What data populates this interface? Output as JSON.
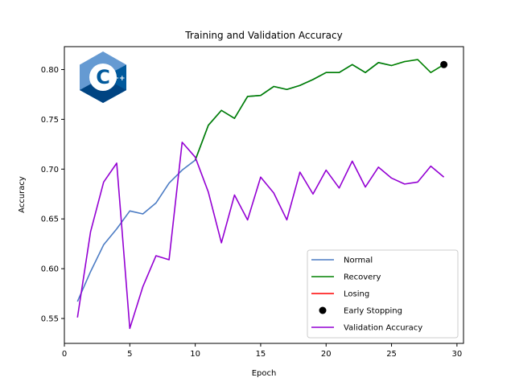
{
  "chart_data": {
    "type": "line",
    "title": "Training and Validation Accuracy",
    "xlabel": "Epoch",
    "ylabel": "Accuracy",
    "xlim": [
      0,
      30.5
    ],
    "ylim": [
      0.525,
      0.823
    ],
    "xticks": [
      0,
      5,
      10,
      15,
      20,
      25,
      30
    ],
    "yticks": [
      0.55,
      0.6,
      0.65,
      0.7,
      0.75,
      0.8
    ],
    "ytick_labels": [
      "0.55",
      "0.60",
      "0.65",
      "0.70",
      "0.75",
      "0.80"
    ],
    "legend_position": "lower-right",
    "series": [
      {
        "name": "Normal",
        "color": "#4c7cc4",
        "x": [
          1,
          2,
          3,
          4,
          5,
          6,
          7,
          8,
          9,
          10,
          11,
          12,
          13,
          14,
          15,
          16,
          17,
          18,
          19,
          20,
          21,
          22,
          23,
          24,
          25
        ],
        "y": [
          0.567,
          0.597,
          0.624,
          0.64,
          0.658,
          0.655,
          0.666,
          0.686,
          0.699,
          0.709,
          0.744,
          0.759,
          0.751,
          0.773,
          0.774,
          0.783,
          0.78,
          0.784,
          0.79,
          0.797,
          0.797,
          0.805,
          0.797,
          0.807,
          0.804
        ]
      },
      {
        "name": "Recovery",
        "color": "#008000",
        "x": [
          10,
          11,
          12,
          13,
          14,
          15,
          16,
          17,
          18,
          19,
          20,
          21,
          22,
          23,
          24,
          25,
          26,
          27,
          28,
          29
        ],
        "y": [
          0.709,
          0.744,
          0.759,
          0.751,
          0.773,
          0.774,
          0.783,
          0.78,
          0.784,
          0.79,
          0.797,
          0.797,
          0.805,
          0.797,
          0.807,
          0.804,
          0.808,
          0.81,
          0.797,
          0.805
        ]
      },
      {
        "name": "Losing",
        "color": "#ff0000",
        "x": [],
        "y": []
      },
      {
        "name": "Early Stopping",
        "color": "#000000",
        "marker": "dot",
        "x": [
          29
        ],
        "y": [
          0.805
        ]
      },
      {
        "name": "Validation Accuracy",
        "color": "#9400d3",
        "x": [
          1,
          2,
          3,
          4,
          5,
          6,
          7,
          8,
          9,
          10,
          11,
          12,
          13,
          14,
          15,
          16,
          17,
          18,
          19,
          20,
          21,
          22,
          23,
          24,
          25,
          26,
          27,
          28,
          29
        ],
        "y": [
          0.551,
          0.637,
          0.687,
          0.706,
          0.54,
          0.582,
          0.613,
          0.609,
          0.727,
          0.712,
          0.677,
          0.626,
          0.674,
          0.649,
          0.692,
          0.676,
          0.649,
          0.697,
          0.675,
          0.699,
          0.681,
          0.708,
          0.682,
          0.702,
          0.691,
          0.685,
          0.687,
          0.703,
          0.692
        ]
      }
    ]
  },
  "logo": {
    "name": "cpp-logo",
    "text": "C",
    "superscript": "++",
    "colors": {
      "light": "#659ad2",
      "mid": "#00599c",
      "dark": "#004482"
    }
  }
}
